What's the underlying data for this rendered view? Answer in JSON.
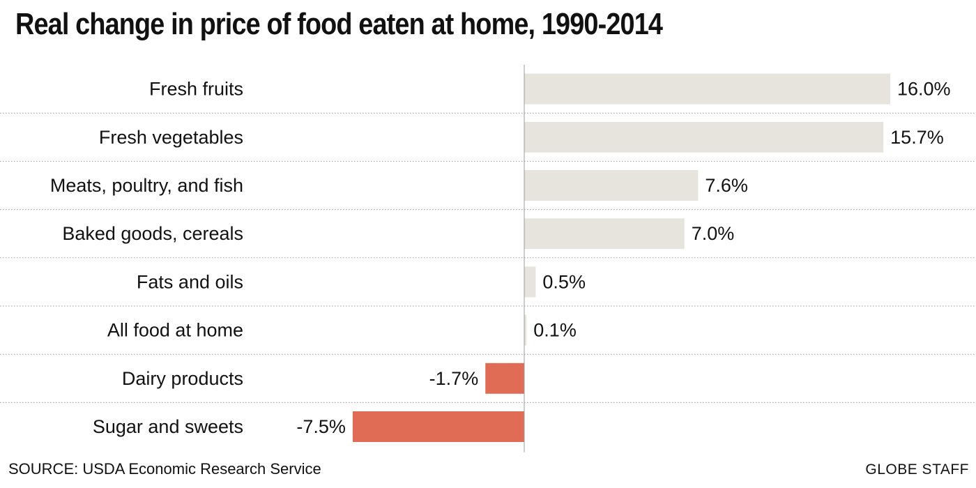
{
  "chart_data": {
    "type": "bar",
    "orientation": "horizontal",
    "title": "Real change in price of food eaten at home, 1990-2014",
    "categories": [
      "Fresh fruits",
      "Fresh vegetables",
      "Meats, poultry, and fish",
      "Baked goods, cereals",
      "Fats and oils",
      "All food at home",
      "Dairy products",
      "Sugar and sweets"
    ],
    "values": [
      16.0,
      15.7,
      7.6,
      7.0,
      0.5,
      0.1,
      -1.7,
      -7.5
    ],
    "value_labels": [
      "16.0%",
      "15.7%",
      "7.6%",
      "7.0%",
      "0.5%",
      "0.1%",
      "-1.7%",
      "-7.5%"
    ],
    "unit": "%",
    "xlim": [
      -7.5,
      16.0
    ],
    "grid": false,
    "colors": {
      "positive": "#e6e4dd",
      "negative": "#e06c55",
      "axis": "#999999",
      "row_divider": "#9a9a9a"
    }
  },
  "footer": {
    "source": "SOURCE: USDA Economic Research Service",
    "credit": "GLOBE STAFF"
  }
}
